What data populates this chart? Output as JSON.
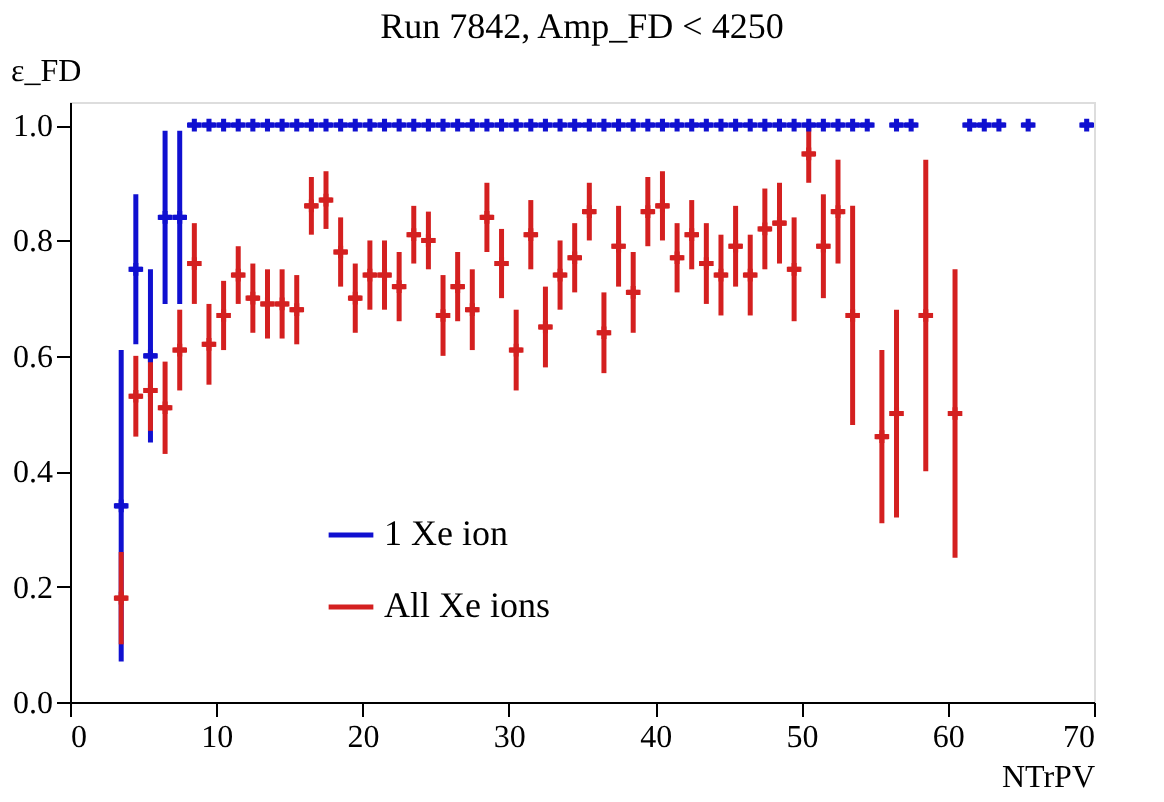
{
  "chart_data": {
    "type": "scatter",
    "title": "Run 7842, Amp_FD < 4250",
    "xlabel": "NTrPV",
    "ylabel": "ε_FD",
    "xlim": [
      0,
      70
    ],
    "xticks": [
      0,
      10,
      20,
      30,
      40,
      50,
      60,
      70
    ],
    "ylim": [
      0,
      1.04
    ],
    "yticks": [
      {
        "value": 0,
        "label": "0.0"
      },
      0.2,
      0.4,
      0.6,
      0.8,
      {
        "value": 1,
        "label": "1.0"
      }
    ],
    "grid": false,
    "legend": "bottom left",
    "marker": "cross",
    "series": [
      {
        "name": "1 Xe ion",
        "color": "#1010d0",
        "x": [
          3.5,
          4.5,
          5.5,
          6.5,
          7.5,
          8.5,
          9.5,
          10.5,
          11.5,
          12.5,
          13.5,
          14.5,
          15.5,
          16.5,
          17.5,
          18.5,
          19.5,
          20.5,
          21.5,
          22.5,
          23.5,
          24.5,
          25.5,
          26.5,
          27.5,
          28.5,
          29.5,
          30.5,
          31.5,
          32.5,
          33.5,
          34.5,
          35.5,
          36.5,
          37.5,
          38.5,
          39.5,
          40.5,
          41.5,
          42.5,
          43.5,
          44.5,
          45.5,
          46.5,
          47.5,
          48.5,
          49.5,
          50.5,
          51.5,
          52.5,
          53.5,
          54.5,
          56.5,
          57.5,
          61.5,
          62.5,
          63.5,
          65.5,
          69.5
        ],
        "values": [
          0.34,
          0.75,
          0.6,
          0.84,
          0.84,
          1,
          1,
          1,
          1,
          1,
          1,
          1,
          1,
          1,
          1,
          1,
          1,
          1,
          1,
          1,
          1,
          1,
          1,
          1,
          1,
          1,
          1,
          1,
          1,
          1,
          1,
          1,
          1,
          1,
          1,
          1,
          1,
          1,
          1,
          1,
          1,
          1,
          1,
          1,
          1,
          1,
          1,
          1,
          1,
          1,
          1,
          1,
          1,
          1,
          1,
          1,
          1,
          1,
          1
        ],
        "errors": [
          0.27,
          0.13,
          0.15,
          0.15,
          0.15,
          0,
          0,
          0,
          0,
          0,
          0,
          0,
          0,
          0,
          0,
          0,
          0,
          0,
          0,
          0,
          0,
          0,
          0,
          0,
          0,
          0,
          0,
          0,
          0,
          0,
          0,
          0,
          0,
          0,
          0,
          0,
          0,
          0,
          0,
          0,
          0,
          0,
          0,
          0,
          0,
          0,
          0,
          0,
          0,
          0,
          0,
          0,
          0,
          0,
          0,
          0,
          0,
          0,
          0
        ],
        "xerrors": [
          0.5,
          0.5,
          0.5,
          0.5,
          0.5,
          0.5,
          0.5,
          0.5,
          0.5,
          0.5,
          0.5,
          0.5,
          0.5,
          0.5,
          0.5,
          0.5,
          0.5,
          0.5,
          0.5,
          0.5,
          0.5,
          0.5,
          0.5,
          0.5,
          0.5,
          0.5,
          0.5,
          0.5,
          0.5,
          0.5,
          0.5,
          0.5,
          0.5,
          0.5,
          0.5,
          0.5,
          0.5,
          0.5,
          0.5,
          0.5,
          0.5,
          0.5,
          0.5,
          0.5,
          0.5,
          0.5,
          0.5,
          0.5,
          0.5,
          0.5,
          0.5,
          0.5,
          0.5,
          0.5,
          0.5,
          0.5,
          0.5,
          0.5,
          0.5
        ]
      },
      {
        "name": "All Xe ions",
        "color": "#d42020",
        "x": [
          3.5,
          4.5,
          5.5,
          6.5,
          7.5,
          8.5,
          9.5,
          10.5,
          11.5,
          12.5,
          13.5,
          14.5,
          15.5,
          16.5,
          17.5,
          18.5,
          19.5,
          20.5,
          21.5,
          22.5,
          23.5,
          24.5,
          25.5,
          26.5,
          27.5,
          28.5,
          29.5,
          30.5,
          31.5,
          32.5,
          33.5,
          34.5,
          35.5,
          36.5,
          37.5,
          38.5,
          39.5,
          40.5,
          41.5,
          42.5,
          43.5,
          44.5,
          45.5,
          46.5,
          47.5,
          48.5,
          49.5,
          50.5,
          51.5,
          52.5,
          53.5,
          55.5,
          56.5,
          58.5,
          60.5
        ],
        "values": [
          0.18,
          0.53,
          0.54,
          0.51,
          0.61,
          0.76,
          0.62,
          0.67,
          0.74,
          0.7,
          0.69,
          0.69,
          0.68,
          0.86,
          0.87,
          0.78,
          0.7,
          0.74,
          0.74,
          0.72,
          0.81,
          0.8,
          0.67,
          0.72,
          0.68,
          0.84,
          0.76,
          0.61,
          0.81,
          0.65,
          0.74,
          0.77,
          0.85,
          0.64,
          0.79,
          0.71,
          0.85,
          0.86,
          0.77,
          0.81,
          0.76,
          0.74,
          0.79,
          0.74,
          0.82,
          0.83,
          0.75,
          0.95,
          0.79,
          0.85,
          0.67,
          0.46,
          0.5,
          0.67,
          0.5
        ],
        "errors": [
          0.08,
          0.07,
          0.07,
          0.08,
          0.07,
          0.07,
          0.07,
          0.06,
          0.05,
          0.06,
          0.06,
          0.06,
          0.06,
          0.05,
          0.05,
          0.06,
          0.06,
          0.06,
          0.06,
          0.06,
          0.05,
          0.05,
          0.07,
          0.06,
          0.07,
          0.06,
          0.06,
          0.07,
          0.06,
          0.07,
          0.06,
          0.06,
          0.05,
          0.07,
          0.07,
          0.07,
          0.06,
          0.06,
          0.06,
          0.06,
          0.07,
          0.07,
          0.07,
          0.07,
          0.07,
          0.07,
          0.09,
          0.05,
          0.09,
          0.09,
          0.19,
          0.15,
          0.18,
          0.27,
          0.25
        ],
        "xerrors": [
          0.5,
          0.5,
          0.5,
          0.5,
          0.5,
          0.5,
          0.5,
          0.5,
          0.5,
          0.5,
          0.5,
          0.5,
          0.5,
          0.5,
          0.5,
          0.5,
          0.5,
          0.5,
          0.5,
          0.5,
          0.5,
          0.5,
          0.5,
          0.5,
          0.5,
          0.5,
          0.5,
          0.5,
          0.5,
          0.5,
          0.5,
          0.5,
          0.5,
          0.5,
          0.5,
          0.5,
          0.5,
          0.5,
          0.5,
          0.5,
          0.5,
          0.5,
          0.5,
          0.5,
          0.5,
          0.5,
          0.5,
          0.5,
          0.5,
          0.5,
          0.5,
          0.5,
          0.5,
          0.5,
          0.5
        ]
      }
    ]
  }
}
